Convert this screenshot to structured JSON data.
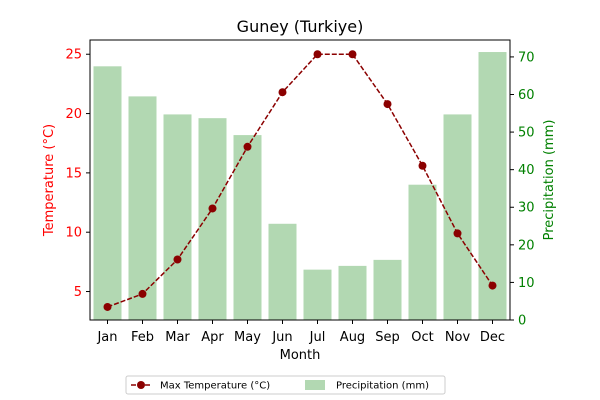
{
  "chart_data": {
    "type": "bar+line",
    "title": "Guney (Turkiye)",
    "xlabel": "Month",
    "ylabel_left": "Temperature (°C)",
    "ylabel_right": "Precipitation (mm)",
    "categories": [
      "Jan",
      "Feb",
      "Mar",
      "Apr",
      "May",
      "Jun",
      "Jul",
      "Aug",
      "Sep",
      "Oct",
      "Nov",
      "Dec"
    ],
    "ylim_left": [
      2.6,
      26.2
    ],
    "ylim_right": [
      0,
      74.5
    ],
    "yticks_left": [
      5,
      10,
      15,
      20,
      25
    ],
    "yticks_right": [
      0,
      10,
      20,
      30,
      40,
      50,
      60,
      70
    ],
    "series": [
      {
        "name": "Max Temperature (°C)",
        "type": "line",
        "axis": "left",
        "color": "#8b0000",
        "values": [
          3.7,
          4.8,
          7.7,
          12.0,
          17.2,
          21.8,
          25.0,
          25.0,
          20.8,
          15.6,
          9.9,
          5.5
        ]
      },
      {
        "name": "Precipitation (mm)",
        "type": "bar",
        "axis": "right",
        "color": "#b2d8b2",
        "values": [
          67.5,
          59.5,
          54.7,
          53.7,
          49.2,
          25.6,
          13.4,
          14.4,
          16.0,
          36.0,
          54.7,
          71.3
        ]
      }
    ],
    "colors": {
      "left_axis": "#ff0000",
      "right_axis": "#008000"
    },
    "legend_position": "bottom-center",
    "grid": false
  }
}
